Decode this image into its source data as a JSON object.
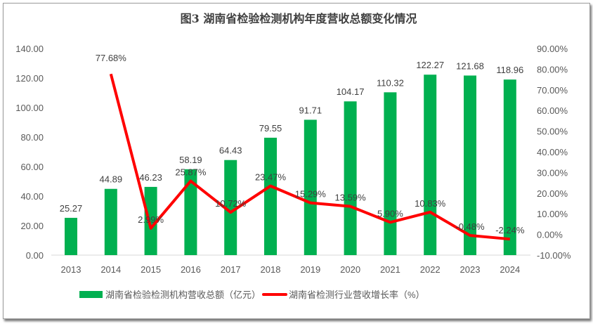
{
  "chart_data": {
    "type": "bar",
    "title": "图3 湖南省检验检测机构年度营收总额变化情况",
    "categories": [
      "2013",
      "2014",
      "2015",
      "2016",
      "2017",
      "2018",
      "2019",
      "2020",
      "2021",
      "2022",
      "2023",
      "2024"
    ],
    "series": [
      {
        "name": "湖南省检验检测机构营收总额（亿元）",
        "type": "bar",
        "axis": "left",
        "color": "#00b050",
        "values": [
          25.27,
          44.89,
          46.23,
          58.19,
          64.43,
          79.55,
          91.71,
          104.17,
          110.32,
          122.27,
          121.68,
          118.96
        ],
        "labels": [
          "25.27",
          "44.89",
          "46.23",
          "58.19",
          "64.43",
          "79.55",
          "91.71",
          "104.17",
          "110.32",
          "122.27",
          "121.68",
          "118.96"
        ]
      },
      {
        "name": "湖南省检测行业营收增长率（%）",
        "type": "line",
        "axis": "right",
        "color": "#ff0000",
        "values": [
          null,
          77.68,
          2.99,
          25.87,
          10.72,
          23.47,
          15.29,
          13.59,
          5.9,
          10.83,
          -0.48,
          -2.24
        ],
        "labels": [
          "",
          "77.68%",
          "2.99%",
          "25.87%",
          "10.72%",
          "23.47%",
          "15.29%",
          "13.59%",
          "5.90%",
          "10.83%",
          "-0.48%",
          "-2.24%"
        ]
      }
    ],
    "y_left": {
      "range": [
        0,
        140
      ],
      "ticks": [
        "0.00",
        "20.00",
        "40.00",
        "60.00",
        "80.00",
        "100.00",
        "120.00",
        "140.00"
      ]
    },
    "y_right": {
      "range": [
        -10,
        90
      ],
      "ticks": [
        "-10.00%",
        "0.00%",
        "10.00%",
        "20.00%",
        "30.00%",
        "40.00%",
        "50.00%",
        "60.00%",
        "70.00%",
        "80.00%",
        "90.00%"
      ]
    },
    "grid": false,
    "legend": "bottom"
  }
}
